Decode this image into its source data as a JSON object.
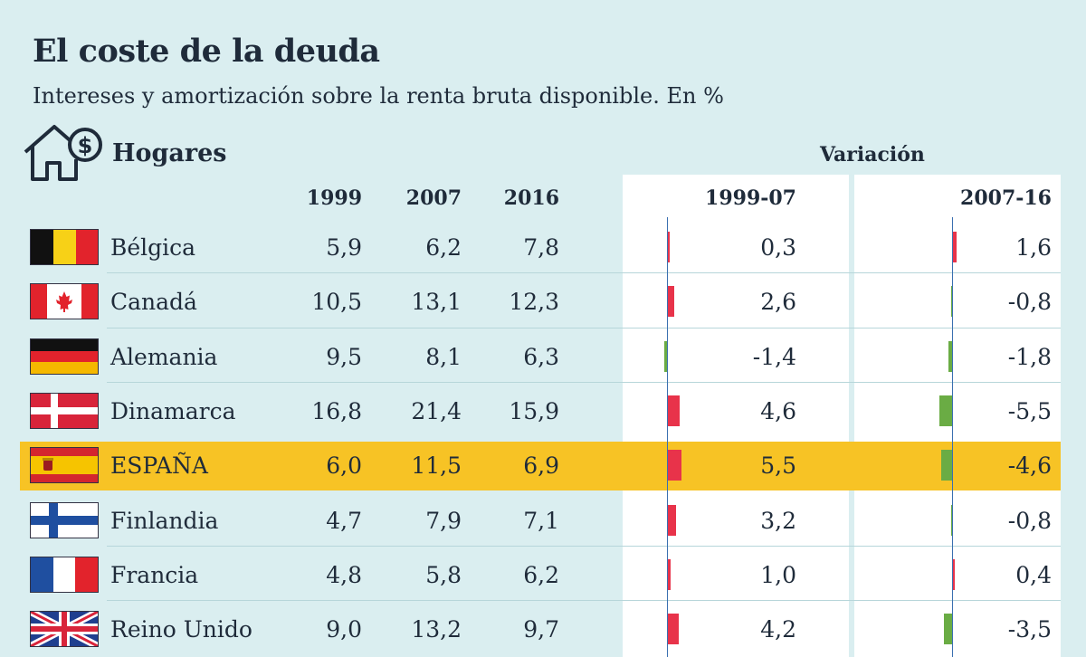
{
  "title": "El coste de la deuda",
  "subtitle": "Intereses y amortización sobre la renta bruta disponible. En %",
  "section_label": "Hogares",
  "variation_label": "Variación",
  "colors": {
    "positive": "#e8334a",
    "negative": "#6aac44",
    "highlight": "#f7c325",
    "background": "#daeef0"
  },
  "chart_data": {
    "type": "table",
    "title": "El coste de la deuda",
    "subtitle": "Intereses y amortización sobre la renta bruta disponible. En %",
    "columns": [
      "1999",
      "2007",
      "2016"
    ],
    "variation_columns": [
      "1999-07",
      "2007-16"
    ],
    "highlight": "ESPAÑA",
    "rows": [
      {
        "country": "Bélgica",
        "flag": "belgium-flag",
        "v1999": "5,9",
        "v2007": "6,2",
        "v2016": "7,8",
        "d1": 0.3,
        "d1_label": "0,3",
        "d2": 1.6,
        "d2_label": "1,6"
      },
      {
        "country": "Canadá",
        "flag": "canada-flag",
        "v1999": "10,5",
        "v2007": "13,1",
        "v2016": "12,3",
        "d1": 2.6,
        "d1_label": "2,6",
        "d2": -0.8,
        "d2_label": "-0,8"
      },
      {
        "country": "Alemania",
        "flag": "germany-flag",
        "v1999": "9,5",
        "v2007": "8,1",
        "v2016": "6,3",
        "d1": -1.4,
        "d1_label": "-1,4",
        "d2": -1.8,
        "d2_label": "-1,8"
      },
      {
        "country": "Dinamarca",
        "flag": "denmark-flag",
        "v1999": "16,8",
        "v2007": "21,4",
        "v2016": "15,9",
        "d1": 4.6,
        "d1_label": "4,6",
        "d2": -5.5,
        "d2_label": "-5,5"
      },
      {
        "country": "ESPAÑA",
        "flag": "spain-flag",
        "v1999": "6,0",
        "v2007": "11,5",
        "v2016": "6,9",
        "d1": 5.5,
        "d1_label": "5,5",
        "d2": -4.6,
        "d2_label": "-4,6"
      },
      {
        "country": "Finlandia",
        "flag": "finland-flag",
        "v1999": "4,7",
        "v2007": "7,9",
        "v2016": "7,1",
        "d1": 3.2,
        "d1_label": "3,2",
        "d2": -0.8,
        "d2_label": "-0,8"
      },
      {
        "country": "Francia",
        "flag": "france-flag",
        "v1999": "4,8",
        "v2007": "5,8",
        "v2016": "6,2",
        "d1": 1.0,
        "d1_label": "1,0",
        "d2": 0.4,
        "d2_label": "0,4"
      },
      {
        "country": "Reino Unido",
        "flag": "uk-flag",
        "v1999": "9,0",
        "v2007": "13,2",
        "v2016": "9,7",
        "d1": 4.2,
        "d1_label": "4,2",
        "d2": -3.5,
        "d2_label": "-3,5"
      }
    ]
  }
}
